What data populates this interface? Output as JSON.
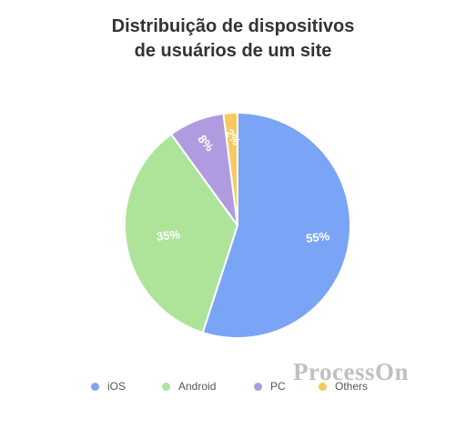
{
  "watermark": "ProcessOn",
  "chart_data": {
    "type": "pie",
    "title_lines": [
      "Distribuição de dispositivos",
      "de usuários de um site"
    ],
    "slices": [
      {
        "name": "iOS",
        "value": 55,
        "label": "55%",
        "color": "#7aa4f6"
      },
      {
        "name": "Android",
        "value": 35,
        "label": "35%",
        "color": "#aee49a"
      },
      {
        "name": "PC",
        "value": 8,
        "label": "8%",
        "color": "#b09be0"
      },
      {
        "name": "Others",
        "value": 2,
        "label": "2%",
        "color": "#f8c95c"
      }
    ],
    "legend_position": "bottom",
    "start_angle": "top",
    "direction": "clockwise"
  }
}
